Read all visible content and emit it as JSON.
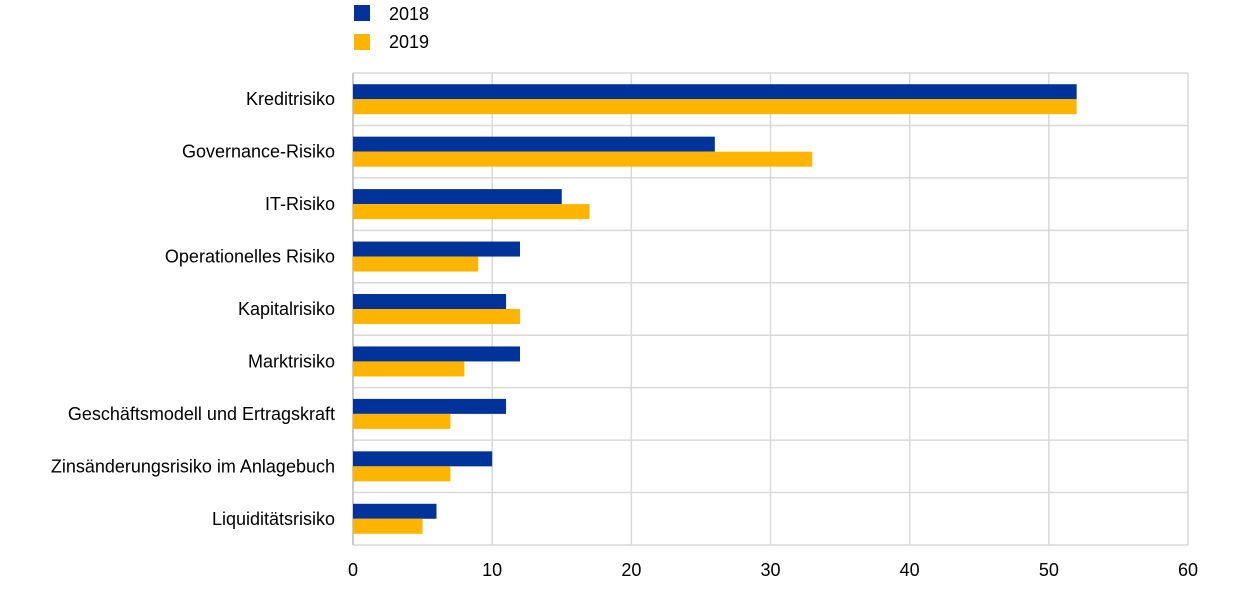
{
  "chart_data": {
    "type": "bar",
    "orientation": "horizontal",
    "categories": [
      "Kreditrisiko",
      "Governance-Risiko",
      "IT-Risiko",
      "Operationelles Risiko",
      "Kapitalrisiko",
      "Marktrisiko",
      "Geschäftsmodell und Ertragskraft",
      "Zinsänderungsrisiko im Anlagebuch",
      "Liquiditätsrisiko"
    ],
    "series": [
      {
        "name": "2018",
        "color": "#003399",
        "values": [
          52,
          26,
          15,
          12,
          11,
          12,
          11,
          10,
          6
        ]
      },
      {
        "name": "2019",
        "color": "#FFB400",
        "values": [
          52,
          33,
          17,
          9,
          12,
          8,
          7,
          7,
          5
        ]
      }
    ],
    "xlim": [
      0,
      60
    ],
    "xticks": [
      "0",
      "10",
      "20",
      "30",
      "40",
      "50",
      "60"
    ],
    "grid": true,
    "legend_position": "top-left"
  }
}
